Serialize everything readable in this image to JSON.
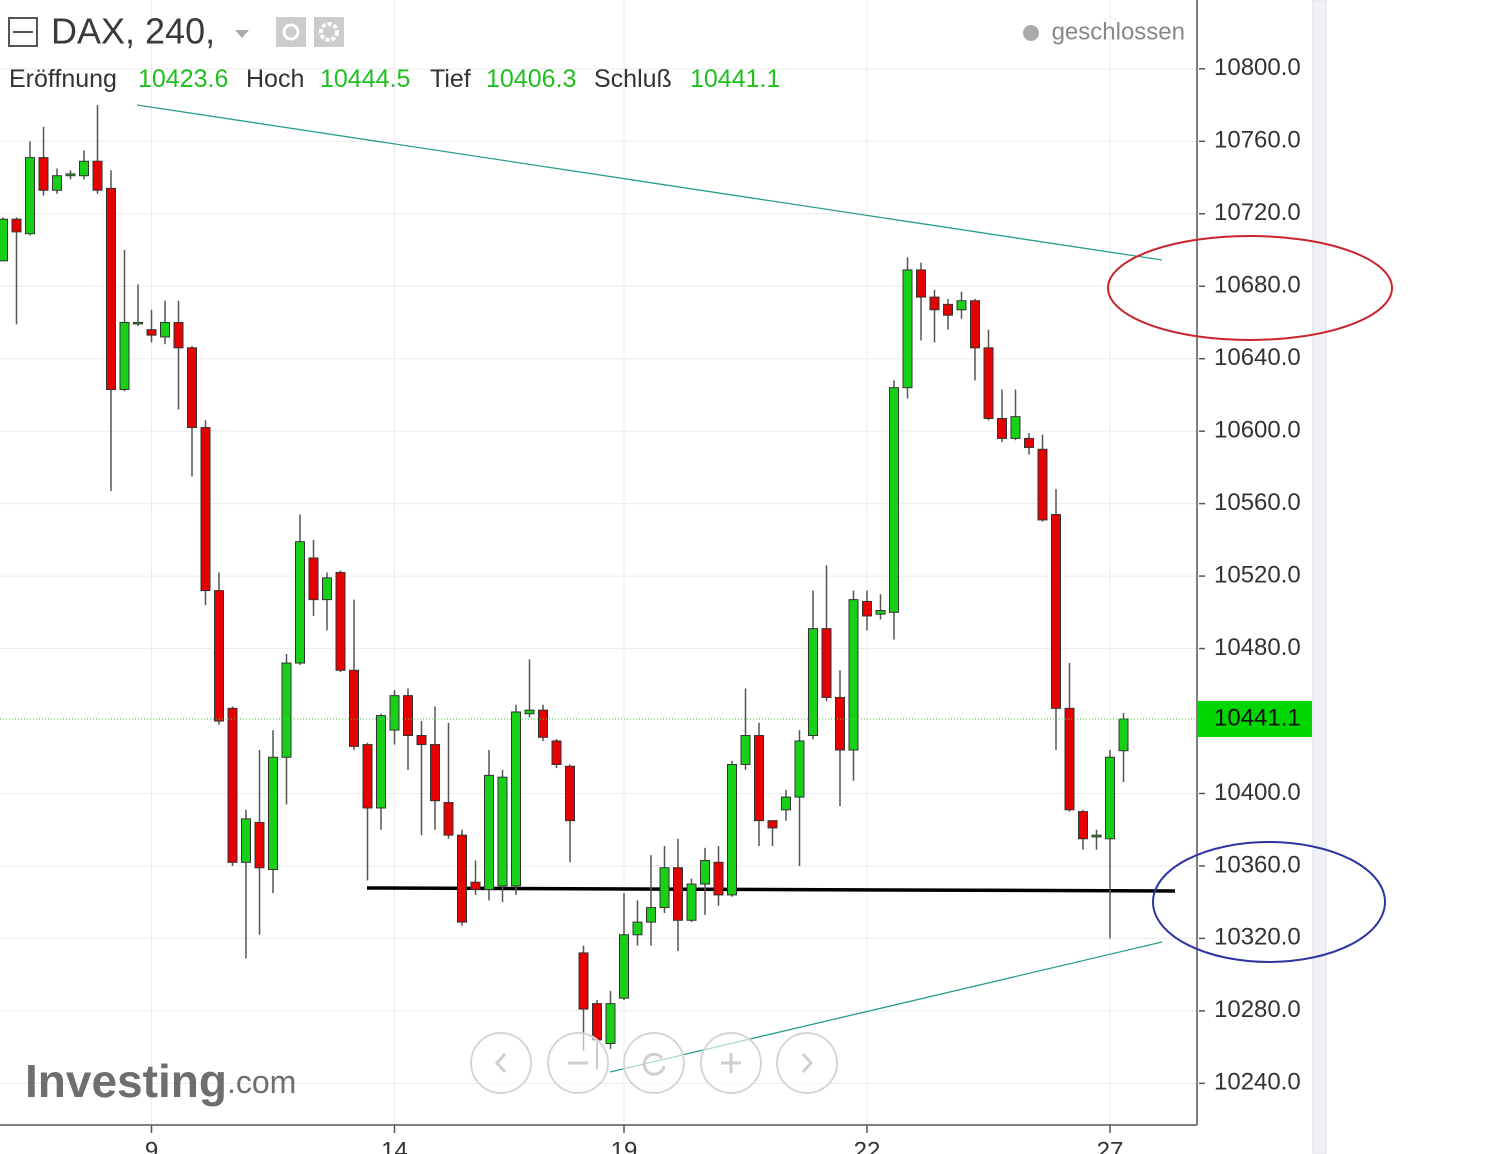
{
  "chart_data": {
    "type": "candlestick",
    "title": "DAX, 240,",
    "status": "geschlossen",
    "ohlc_labels": [
      "Eröffnung",
      "Hoch",
      "Tief",
      "Schluß"
    ],
    "brand": "Investing",
    "brand_suffix": ".com",
    "categories": [
      null,
      null,
      null,
      null,
      null,
      null,
      null,
      null,
      null,
      null,
      null,
      "9",
      null,
      null,
      null,
      null,
      null,
      null,
      null,
      null,
      null,
      null,
      null,
      null,
      null,
      null,
      null,
      null,
      null,
      "14",
      null,
      null,
      null,
      null,
      null,
      null,
      null,
      null,
      null,
      null,
      null,
      null,
      null,
      null,
      null,
      null,
      "19",
      null,
      null,
      null,
      null,
      null,
      null,
      null,
      null,
      null,
      null,
      null,
      null,
      null,
      null,
      null,
      null,
      null,
      "22",
      null,
      null,
      null,
      null,
      null,
      null,
      null,
      null,
      null,
      null,
      null,
      null,
      null,
      null,
      null,
      null,
      null,
      "27",
      null
    ],
    "open": [
      10694,
      10717,
      10709,
      10751,
      10733,
      10741,
      10741,
      10749,
      10734,
      10623,
      10660,
      10656,
      10652,
      10660,
      10646,
      10602,
      10512,
      10447,
      10362,
      10384,
      10358,
      10420,
      10472,
      10530,
      10507,
      10522,
      10468,
      10427,
      10392,
      10435,
      10454,
      10432,
      10427,
      10395,
      10377,
      10351,
      10347,
      10349,
      10349,
      10444,
      10446,
      10429,
      10415,
      10312,
      10284,
      10262,
      10287,
      10322,
      10329,
      10337,
      10359,
      10330,
      10350,
      10362,
      10344,
      10416,
      10432,
      10385,
      10391,
      10398,
      10432,
      10491,
      10453,
      10424,
      10506,
      10499,
      10500,
      10624,
      10689,
      10674,
      10670,
      10667,
      10672,
      10646,
      10607,
      10596,
      10596,
      10590,
      10554,
      10447,
      10390,
      10376,
      10375,
      10423.6
    ],
    "high": [
      10718,
      10718,
      10760,
      10768,
      10745,
      10744,
      10755,
      10780,
      10744,
      10700,
      10681,
      10667,
      10672,
      10672,
      10647,
      10606,
      10522,
      10448,
      10391,
      10424,
      10435,
      10477,
      10554,
      10540,
      10522,
      10523,
      10507,
      10428,
      10444,
      10457,
      10458,
      10440,
      10448,
      10439,
      10380,
      10363,
      10424,
      10413,
      10449,
      10474,
      10449,
      10430,
      10416,
      10316,
      10286,
      10291,
      10345,
      10341,
      10366,
      10371,
      10375,
      10353,
      10370,
      10371,
      10418,
      10458,
      10439,
      10385,
      10402,
      10435,
      10512,
      10526,
      10468,
      10512,
      10512,
      10510,
      10628,
      10696,
      10693,
      10678,
      10673,
      10677,
      10673,
      10656,
      10623,
      10623,
      10599,
      10598,
      10568,
      10472,
      10391,
      10380,
      10424,
      10444.5
    ],
    "low": [
      10694,
      10659,
      10708,
      10730,
      10731,
      10739,
      10739,
      10731,
      10567,
      10622,
      10658,
      10649,
      10648,
      10612,
      10575,
      10504,
      10438,
      10360,
      10309,
      10322,
      10345,
      10394,
      10471,
      10498,
      10490,
      10467,
      10424,
      10352,
      10380,
      10427,
      10413,
      10377,
      10380,
      10375,
      10327,
      10344,
      10341,
      10340,
      10344,
      10442,
      10429,
      10414,
      10362,
      10258,
      10248,
      10259,
      10286,
      10316,
      10316,
      10334,
      10313,
      10329,
      10333,
      10338,
      10343,
      10413,
      10371,
      10371,
      10385,
      10360,
      10430,
      10451,
      10393,
      10407,
      10490,
      10496,
      10485,
      10618,
      10650,
      10649,
      10656,
      10662,
      10628,
      10606,
      10594,
      10595,
      10587,
      10550,
      10424,
      10390,
      10369,
      10369,
      10320,
      10406.3
    ],
    "close": [
      10717,
      10710,
      10751,
      10733,
      10741,
      10742,
      10749,
      10733,
      10623,
      10660,
      10660,
      10653,
      10660,
      10646,
      10602,
      10512,
      10440,
      10362,
      10386,
      10359,
      10420,
      10472,
      10539,
      10507,
      10519,
      10468,
      10426,
      10392,
      10443,
      10454,
      10432,
      10427,
      10396,
      10377,
      10329,
      10347,
      10410,
      10409,
      10445,
      10446,
      10431,
      10416,
      10385,
      10281,
      10264,
      10284,
      10322,
      10329,
      10337,
      10359,
      10330,
      10350,
      10363,
      10344,
      10416,
      10432,
      10385,
      10381,
      10398,
      10429,
      10491,
      10453,
      10424,
      10507,
      10498,
      10501,
      10624,
      10689,
      10674,
      10667,
      10664,
      10672,
      10646,
      10607,
      10596,
      10608,
      10591,
      10551,
      10447,
      10391,
      10375,
      10377,
      10420,
      10441.1
    ],
    "up_color": "#19d019",
    "down_color": "#e60000",
    "ylim": [
      10838,
      10217
    ],
    "yticks": [
      {
        "value": 10240,
        "label": "10240.0"
      },
      {
        "value": 10280,
        "label": "10280.0"
      },
      {
        "value": 10320,
        "label": "10320.0"
      },
      {
        "value": 10360,
        "label": "10360.0"
      },
      {
        "value": 10400,
        "label": "10400.0"
      },
      {
        "value": 10480,
        "label": "10480.0"
      },
      {
        "value": 10520,
        "label": "10520.0"
      },
      {
        "value": 10560,
        "label": "10560.0"
      },
      {
        "value": 10600,
        "label": "10600.0"
      },
      {
        "value": 10640,
        "label": "10640.0"
      },
      {
        "value": 10680,
        "label": "10680.0"
      },
      {
        "value": 10720,
        "label": "10720.0"
      },
      {
        "value": 10760,
        "label": "10760.0"
      },
      {
        "value": 10800,
        "label": "10800.0"
      }
    ],
    "grid": true
  }
}
